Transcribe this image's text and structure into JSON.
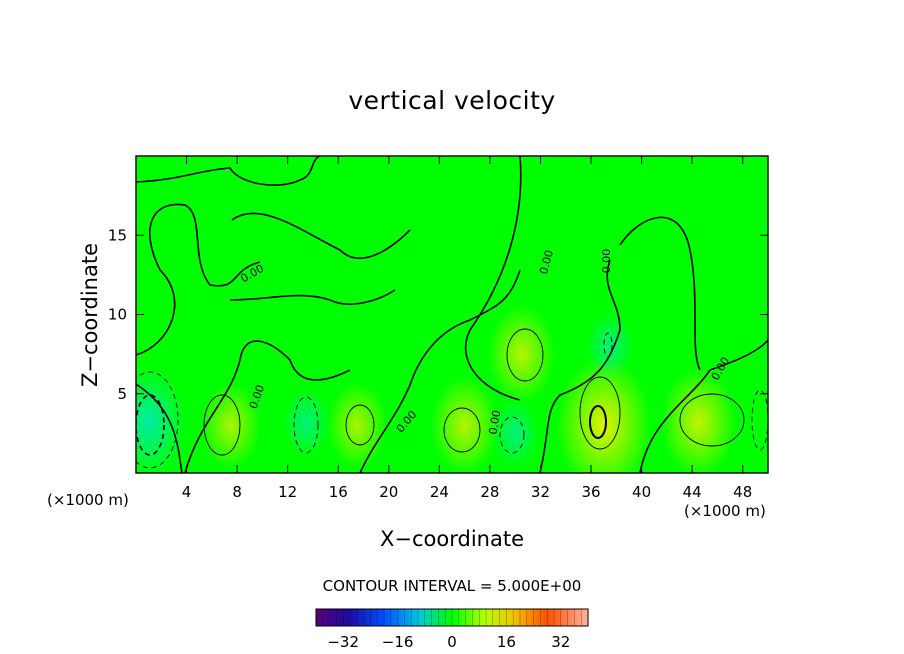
{
  "chart_data": {
    "type": "heatmap",
    "title": "vertical velocity",
    "xlabel": "X−coordinate",
    "ylabel": "Z−coordinate",
    "x_unit_label": "(×1000 m)",
    "xlim": [
      0,
      50
    ],
    "ylim": [
      0,
      20
    ],
    "x_ticks": [
      4,
      8,
      12,
      16,
      20,
      24,
      28,
      32,
      36,
      40,
      44,
      48
    ],
    "y_ticks": [
      5,
      10,
      15
    ],
    "contour_interval_label": "CONTOUR INTERVAL = 5.000E+00",
    "contour_interval": 5.0,
    "zero_contour_label": "0.00",
    "colorbar": {
      "range": [
        -40,
        40
      ],
      "ticks": [
        -32,
        -16,
        0,
        16,
        32
      ],
      "tick_labels": [
        "−32",
        "−16",
        "0",
        "16",
        "32"
      ]
    },
    "features": [
      {
        "x": 37,
        "z": 3.0,
        "value": 15,
        "sign": "positive"
      },
      {
        "x": 44.5,
        "z": 3.2,
        "value": 10,
        "sign": "positive"
      },
      {
        "x": 30.5,
        "z": 7.5,
        "value": 8,
        "sign": "positive"
      },
      {
        "x": 26,
        "z": 3.0,
        "value": 8,
        "sign": "positive"
      },
      {
        "x": 17.5,
        "z": 3.0,
        "value": 6,
        "sign": "positive"
      },
      {
        "x": 7.5,
        "z": 3.0,
        "value": 6,
        "sign": "positive"
      },
      {
        "x": 1,
        "z": 3.2,
        "value": -10,
        "sign": "negative"
      },
      {
        "x": 13.5,
        "z": 3.2,
        "value": -3,
        "sign": "negative"
      },
      {
        "x": 30,
        "z": 2.5,
        "value": -3,
        "sign": "negative"
      },
      {
        "x": 37.5,
        "z": 8.0,
        "value": -3,
        "sign": "negative"
      }
    ]
  },
  "colors": {
    "background": "#00ff00",
    "positive": "#f0f000",
    "negative": "#00e8c8",
    "line": "#000000"
  }
}
